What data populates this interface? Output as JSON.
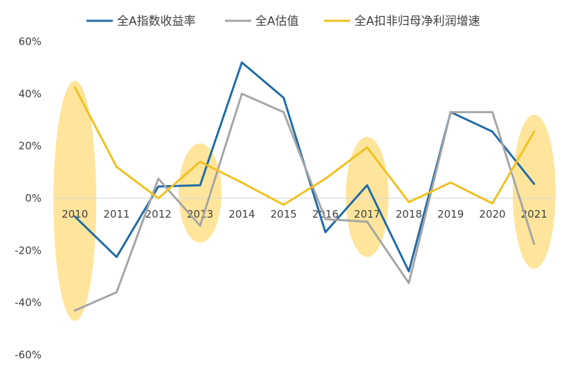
{
  "chart_data": {
    "type": "line",
    "title": "",
    "xlabel": "",
    "ylabel": "",
    "categories": [
      "2010",
      "2011",
      "2012",
      "2013",
      "2014",
      "2015",
      "2016",
      "2017",
      "2018",
      "2019",
      "2020",
      "2021"
    ],
    "ylim": [
      -60,
      60
    ],
    "yticks": [
      -60,
      -40,
      -20,
      0,
      20,
      40,
      60
    ],
    "ytick_labels": [
      "-60%",
      "-40%",
      "-20%",
      "0%",
      "20%",
      "40%",
      "60%"
    ],
    "grid": false,
    "legend_position": "top",
    "series": [
      {
        "name": "全A指数收益率",
        "color": "#1F6BA5",
        "values": [
          -7,
          -22.5,
          4.5,
          5,
          52,
          38.5,
          -13,
          5,
          -28,
          33,
          25.5,
          5.5
        ]
      },
      {
        "name": "全A估值",
        "color": "#A5A5A5",
        "values": [
          -43,
          -36,
          7.5,
          -10.5,
          40,
          33,
          -8,
          -9,
          -32.5,
          33,
          33,
          -17.5
        ]
      },
      {
        "name": "全A扣非归母净利润增速",
        "color": "#F2C01E",
        "values": [
          42.5,
          12,
          0,
          14,
          6,
          -2.5,
          7.5,
          19.5,
          -1.5,
          6,
          -2,
          25.5
        ]
      }
    ],
    "highlight_color": "#FFE08A",
    "highlights": [
      {
        "category": "2010",
        "y_range": [
          -47,
          45
        ]
      },
      {
        "category": "2013",
        "y_range": [
          -17,
          21
        ]
      },
      {
        "category": "2017",
        "y_range": [
          -22.5,
          23.5
        ]
      },
      {
        "category": "2021",
        "y_range": [
          -27,
          32
        ]
      }
    ]
  }
}
